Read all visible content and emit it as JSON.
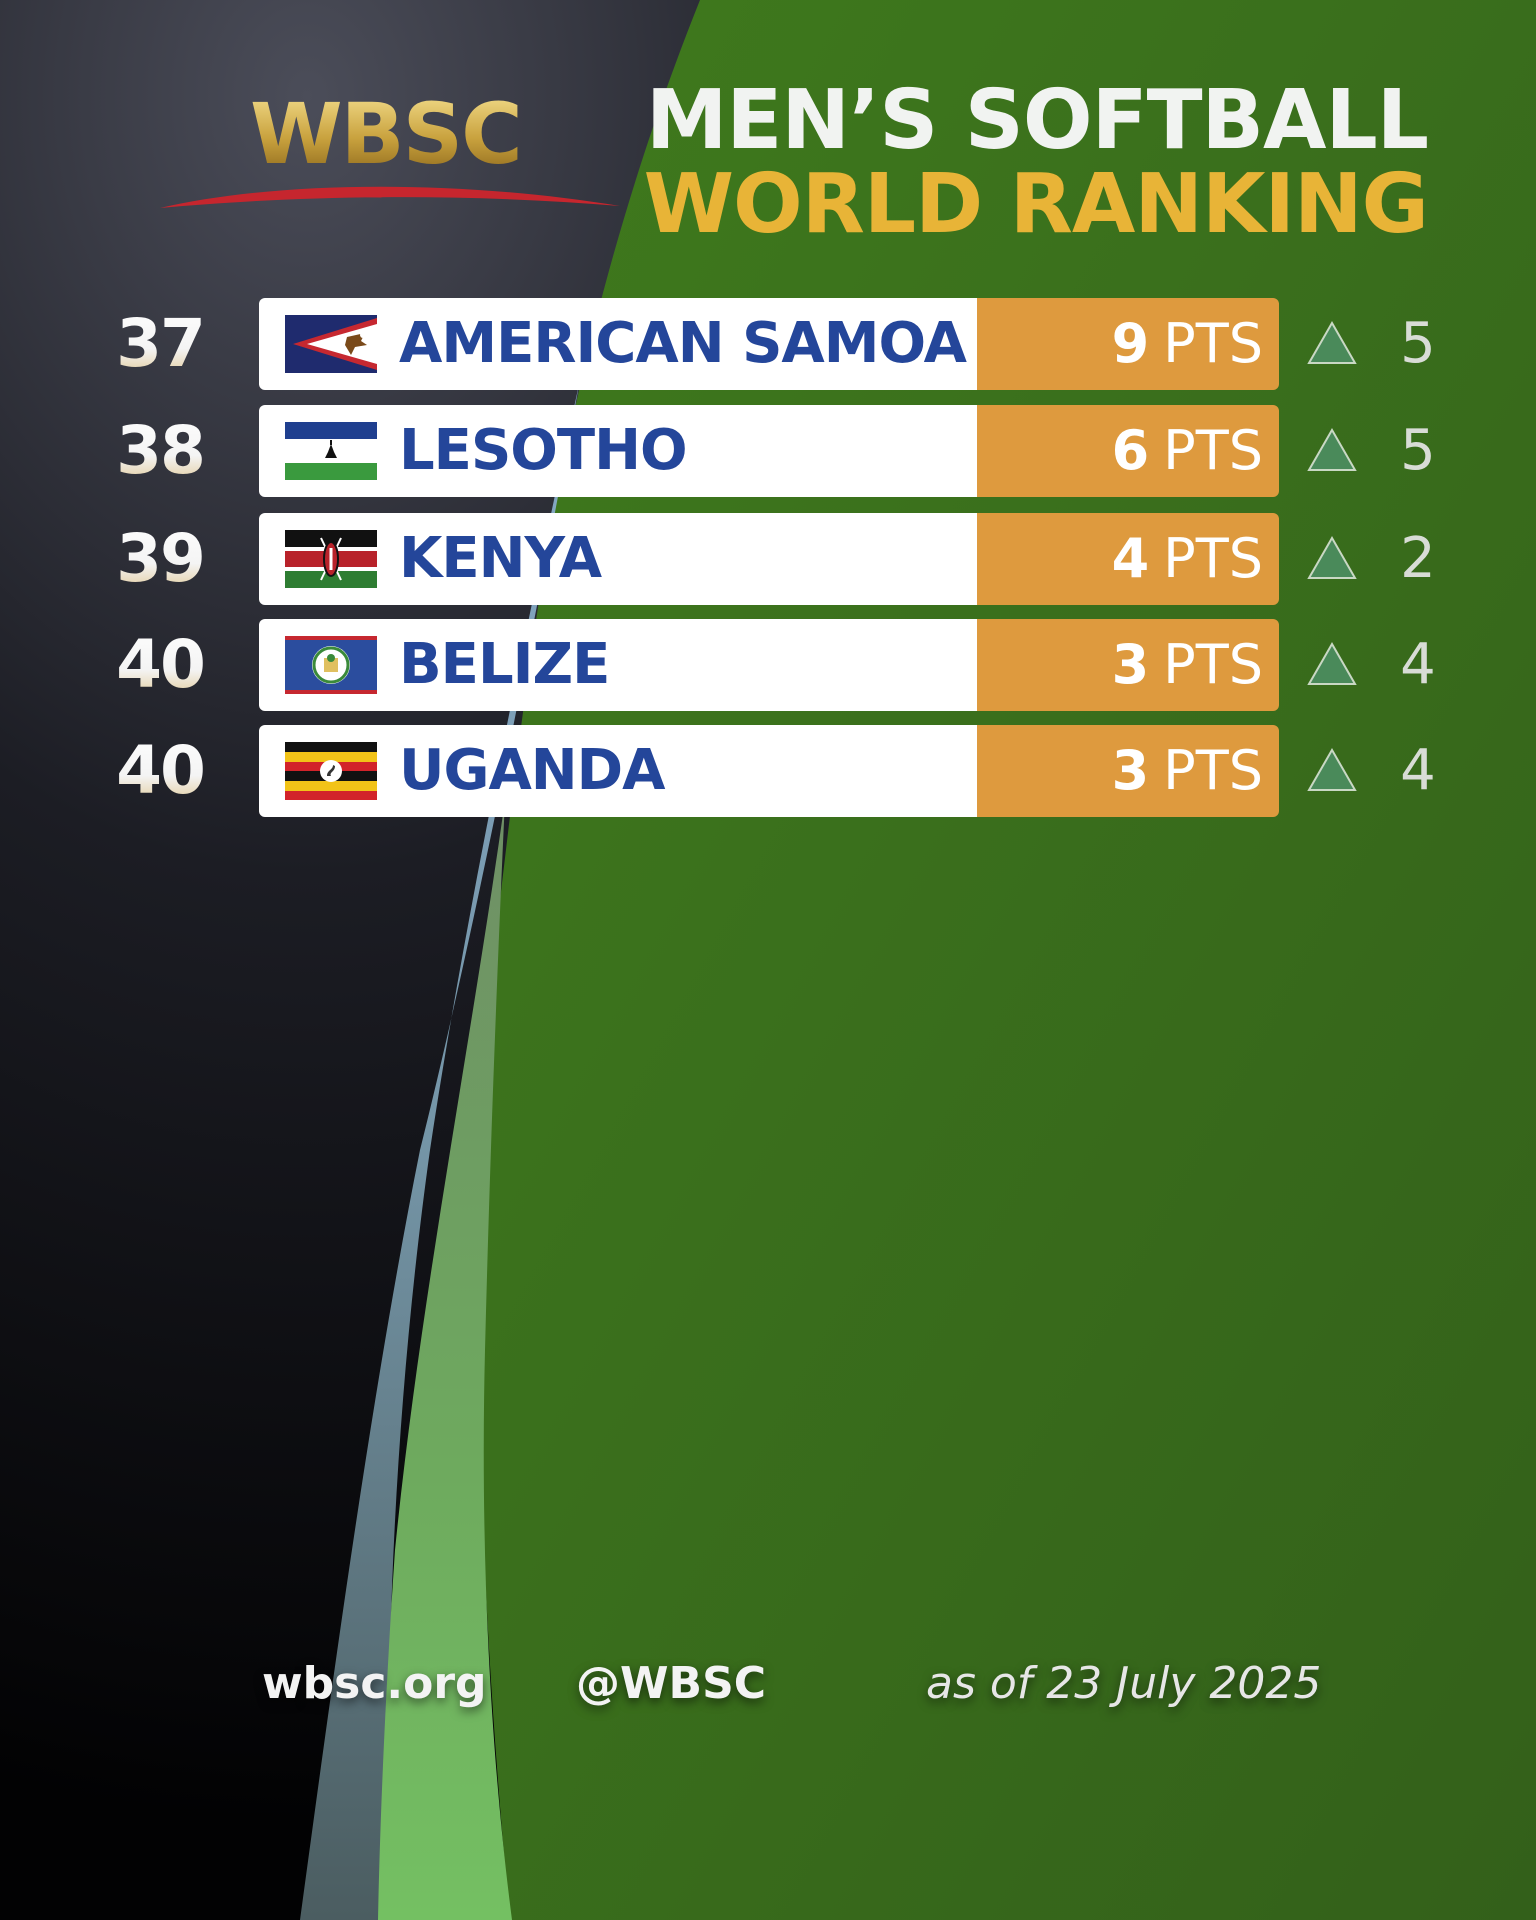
{
  "brand": {
    "logo_text": "WBSC",
    "gold": "#c9a23e",
    "swoosh_color": "#c6262e"
  },
  "title": {
    "line1": "MEN’S SOFTBALL",
    "line2": "WORLD RANKING"
  },
  "colors": {
    "green": "#3c6b1b",
    "dark": "#0a0a0c",
    "card": "#ffffff",
    "points_box": "#de9a3e",
    "country_text": "#24469a",
    "arrow_up": "#4a8a5a"
  },
  "rankings": [
    {
      "rank": "37",
      "country": "AMERICAN SAMOA",
      "flag": "american-samoa-flag",
      "points": "9",
      "unit": "PTS",
      "trend": "up",
      "change": "5"
    },
    {
      "rank": "38",
      "country": "LESOTHO",
      "flag": "lesotho-flag",
      "points": "6",
      "unit": "PTS",
      "trend": "up",
      "change": "5"
    },
    {
      "rank": "39",
      "country": "KENYA",
      "flag": "kenya-flag",
      "points": "4",
      "unit": "PTS",
      "trend": "up",
      "change": "2"
    },
    {
      "rank": "40",
      "country": "BELIZE",
      "flag": "belize-flag",
      "points": "3",
      "unit": "PTS",
      "trend": "up",
      "change": "4"
    },
    {
      "rank": "40",
      "country": "UGANDA",
      "flag": "uganda-flag",
      "points": "3",
      "unit": "PTS",
      "trend": "up",
      "change": "4"
    }
  ],
  "footer": {
    "website": "wbsc.org",
    "handle": "@WBSC",
    "date": "as of 23 July 2025"
  }
}
